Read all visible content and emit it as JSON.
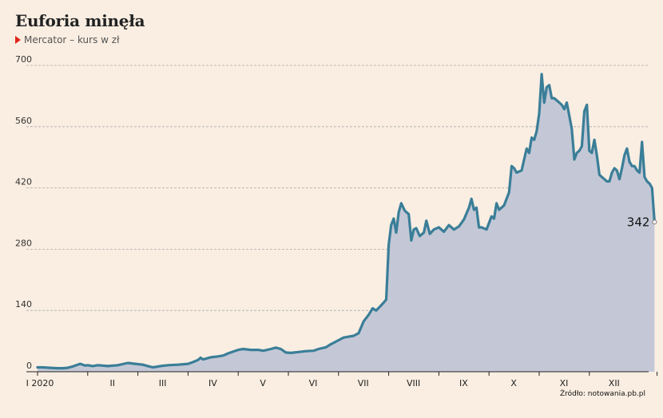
{
  "header": {
    "title": "Euforia minęła",
    "subtitle": "Mercator – kurs w zł"
  },
  "source": "Źródło: notowania.pb.pl",
  "last_value_label": "342",
  "colors": {
    "line": "#3a7e98",
    "area": "#c4c8d6",
    "grid": "#aaaaaa",
    "marker": "#e0261a",
    "background": "#faeee2"
  },
  "chart_data": {
    "type": "area",
    "title": "Euforia minęła",
    "subtitle": "Mercator – kurs w zł",
    "ylabel": "",
    "xlabel": "",
    "ylim": [
      0,
      700
    ],
    "yticks": [
      0,
      140,
      280,
      420,
      560,
      700
    ],
    "grid": true,
    "x_tick_labels": [
      "I 2020",
      "II",
      "III",
      "IV",
      "V",
      "VI",
      "VII",
      "VIII",
      "IX",
      "X",
      "XI",
      "XII"
    ],
    "x_tick_months": [
      0,
      1,
      2,
      3,
      4,
      5,
      6,
      7,
      8,
      9,
      10,
      11
    ],
    "series": [
      {
        "points": [
          [
            0.0,
            10
          ],
          [
            0.1,
            10
          ],
          [
            0.25,
            9
          ],
          [
            0.4,
            8
          ],
          [
            0.5,
            8
          ],
          [
            0.6,
            9
          ],
          [
            0.7,
            12
          ],
          [
            0.85,
            18
          ],
          [
            0.95,
            14
          ],
          [
            1.0,
            15
          ],
          [
            1.1,
            13
          ],
          [
            1.2,
            15
          ],
          [
            1.4,
            13
          ],
          [
            1.6,
            15
          ],
          [
            1.8,
            20
          ],
          [
            1.95,
            18
          ],
          [
            2.1,
            16
          ],
          [
            2.2,
            13
          ],
          [
            2.3,
            10
          ],
          [
            2.45,
            13
          ],
          [
            2.6,
            15
          ],
          [
            2.8,
            16
          ],
          [
            3.0,
            18
          ],
          [
            3.1,
            22
          ],
          [
            3.2,
            27
          ],
          [
            3.25,
            32
          ],
          [
            3.3,
            28
          ],
          [
            3.45,
            33
          ],
          [
            3.6,
            35
          ],
          [
            3.7,
            37
          ],
          [
            3.8,
            42
          ],
          [
            3.9,
            46
          ],
          [
            4.0,
            50
          ],
          [
            4.1,
            52
          ],
          [
            4.25,
            50
          ],
          [
            4.4,
            50
          ],
          [
            4.5,
            48
          ],
          [
            4.65,
            52
          ],
          [
            4.75,
            55
          ],
          [
            4.85,
            52
          ],
          [
            4.95,
            44
          ],
          [
            5.05,
            43
          ],
          [
            5.2,
            45
          ],
          [
            5.35,
            47
          ],
          [
            5.5,
            48
          ],
          [
            5.6,
            52
          ],
          [
            5.75,
            56
          ],
          [
            5.85,
            63
          ],
          [
            6.0,
            72
          ],
          [
            6.1,
            78
          ],
          [
            6.2,
            80
          ],
          [
            6.3,
            82
          ],
          [
            6.4,
            88
          ],
          [
            6.5,
            115
          ],
          [
            6.6,
            130
          ],
          [
            6.68,
            145
          ],
          [
            6.75,
            140
          ],
          [
            6.82,
            148
          ],
          [
            6.9,
            158
          ],
          [
            6.95,
            165
          ],
          [
            7.0,
            290
          ],
          [
            7.05,
            335
          ],
          [
            7.1,
            350
          ],
          [
            7.15,
            318
          ],
          [
            7.2,
            365
          ],
          [
            7.25,
            385
          ],
          [
            7.32,
            368
          ],
          [
            7.4,
            360
          ],
          [
            7.45,
            300
          ],
          [
            7.5,
            325
          ],
          [
            7.55,
            328
          ],
          [
            7.62,
            310
          ],
          [
            7.7,
            318
          ],
          [
            7.75,
            345
          ],
          [
            7.82,
            315
          ],
          [
            7.9,
            325
          ],
          [
            8.0,
            330
          ],
          [
            8.1,
            320
          ],
          [
            8.2,
            335
          ],
          [
            8.3,
            325
          ],
          [
            8.4,
            332
          ],
          [
            8.5,
            348
          ],
          [
            8.6,
            375
          ],
          [
            8.65,
            395
          ],
          [
            8.7,
            370
          ],
          [
            8.75,
            375
          ],
          [
            8.8,
            330
          ],
          [
            8.85,
            330
          ],
          [
            8.95,
            325
          ],
          [
            9.0,
            340
          ],
          [
            9.05,
            355
          ],
          [
            9.1,
            350
          ],
          [
            9.15,
            385
          ],
          [
            9.2,
            370
          ],
          [
            9.3,
            380
          ],
          [
            9.4,
            410
          ],
          [
            9.45,
            470
          ],
          [
            9.5,
            465
          ],
          [
            9.55,
            455
          ],
          [
            9.65,
            460
          ],
          [
            9.75,
            510
          ],
          [
            9.8,
            500
          ],
          [
            9.85,
            535
          ],
          [
            9.9,
            530
          ],
          [
            9.95,
            550
          ],
          [
            10.0,
            590
          ],
          [
            10.05,
            680
          ],
          [
            10.1,
            615
          ],
          [
            10.15,
            650
          ],
          [
            10.2,
            655
          ],
          [
            10.25,
            625
          ],
          [
            10.3,
            625
          ],
          [
            10.4,
            615
          ],
          [
            10.45,
            610
          ],
          [
            10.5,
            600
          ],
          [
            10.55,
            615
          ],
          [
            10.6,
            585
          ],
          [
            10.65,
            555
          ],
          [
            10.7,
            485
          ],
          [
            10.75,
            500
          ],
          [
            10.8,
            505
          ],
          [
            10.85,
            515
          ],
          [
            10.9,
            595
          ],
          [
            10.95,
            610
          ],
          [
            11.0,
            505
          ],
          [
            11.05,
            500
          ],
          [
            11.1,
            530
          ],
          [
            11.15,
            495
          ],
          [
            11.2,
            450
          ],
          [
            11.25,
            445
          ],
          [
            11.3,
            440
          ],
          [
            11.35,
            435
          ],
          [
            11.4,
            435
          ],
          [
            11.45,
            455
          ],
          [
            11.5,
            465
          ],
          [
            11.55,
            460
          ],
          [
            11.6,
            440
          ],
          [
            11.65,
            465
          ],
          [
            11.7,
            495
          ],
          [
            11.75,
            510
          ],
          [
            11.8,
            480
          ],
          [
            11.85,
            470
          ],
          [
            11.9,
            470
          ],
          [
            11.95,
            460
          ],
          [
            12.0,
            455
          ],
          [
            12.05,
            525
          ],
          [
            12.1,
            445
          ],
          [
            12.15,
            435
          ],
          [
            12.2,
            430
          ],
          [
            12.25,
            420
          ],
          [
            12.3,
            342
          ]
        ]
      }
    ]
  }
}
